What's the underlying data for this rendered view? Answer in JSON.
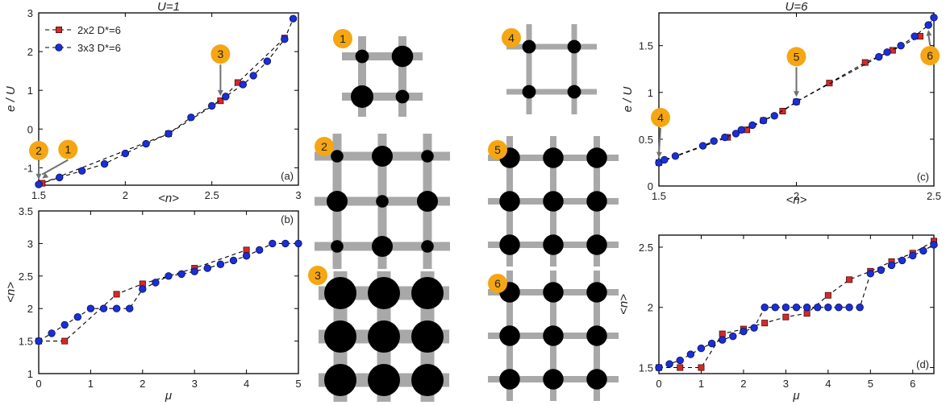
{
  "chart_data": [
    {
      "panel": "(a)",
      "type": "line",
      "title": "U=1",
      "xlabel": "<n>",
      "ylabel": "e / U",
      "xlim": [
        1.5,
        3
      ],
      "ylim": [
        -1.45,
        3
      ],
      "xticks": [
        "1.5",
        "2",
        "2.5",
        "3"
      ],
      "yticks": [
        "-1",
        "0",
        "1",
        "2",
        "3"
      ],
      "legend": {
        "placement": "top-left",
        "entries": [
          "2x2 D*=6",
          "3x3 D*=6"
        ]
      },
      "series": [
        {
          "name": "2x2 D*=6",
          "marker": "square",
          "color": "#d42a2a",
          "x": [
            1.52,
            2.25,
            2.55,
            2.65,
            2.92
          ],
          "y": [
            -1.4,
            -0.12,
            0.73,
            1.2,
            2.35
          ]
        },
        {
          "name": "3x3 D*=6",
          "marker": "circle",
          "color": "#1a2fd6",
          "x": [
            1.5,
            1.62,
            1.75,
            1.88,
            2.0,
            2.12,
            2.25,
            2.38,
            2.5,
            2.58,
            2.68,
            2.74,
            2.82,
            2.92,
            2.97
          ],
          "y": [
            -1.43,
            -1.25,
            -1.08,
            -0.9,
            -0.63,
            -0.38,
            -0.12,
            0.3,
            0.6,
            0.84,
            1.15,
            1.38,
            1.75,
            2.32,
            2.85
          ]
        }
      ],
      "annotations": [
        {
          "label": "1",
          "x": 1.52,
          "y": -1.4
        },
        {
          "label": "2",
          "x": 1.5,
          "y": -1.43
        },
        {
          "label": "3",
          "x": 2.55,
          "y": 0.73
        }
      ]
    },
    {
      "panel": "(b)",
      "type": "line",
      "xlabel": "μ",
      "ylabel": "<n>",
      "xlim": [
        0,
        5
      ],
      "ylim": [
        1,
        3.5
      ],
      "xticks": [
        "0",
        "1",
        "2",
        "3",
        "4",
        "5"
      ],
      "yticks": [
        "1",
        "1.5",
        "2",
        "2.5",
        "3",
        "3.5"
      ],
      "series": [
        {
          "name": "2x2 D*=6",
          "marker": "square",
          "color": "#d42a2a",
          "x": [
            0,
            0.5,
            1.5,
            2.0,
            3.0,
            4.0
          ],
          "y": [
            1.5,
            1.5,
            2.22,
            2.38,
            2.62,
            2.9
          ]
        },
        {
          "name": "3x3 D*=6",
          "marker": "circle",
          "color": "#1a2fd6",
          "x": [
            0,
            0.25,
            0.5,
            0.75,
            1.0,
            1.25,
            1.5,
            1.75,
            2.0,
            2.25,
            2.5,
            2.75,
            3.0,
            3.25,
            3.5,
            3.75,
            4.0,
            4.25,
            4.5,
            4.75,
            5.0
          ],
          "y": [
            1.5,
            1.62,
            1.75,
            1.87,
            2.0,
            2.0,
            2.0,
            2.0,
            2.3,
            2.4,
            2.5,
            2.53,
            2.57,
            2.62,
            2.68,
            2.74,
            2.81,
            2.9,
            3.0,
            3.0,
            3.0
          ]
        }
      ]
    },
    {
      "panel": "(c)",
      "type": "line",
      "title": "U=6",
      "xlabel": "<n>",
      "ylabel": "e / U",
      "xlim": [
        1.5,
        2.5
      ],
      "ylim": [
        0,
        1.85
      ],
      "xticks": [
        "1.5",
        "2",
        "2.5"
      ],
      "yticks": [
        "0",
        "0.5",
        "1",
        "1.5"
      ],
      "series": [
        {
          "name": "2x2 D*=6",
          "marker": "square",
          "color": "#d42a2a",
          "x": [
            1.5,
            1.75,
            1.82,
            1.88,
            1.95,
            2.0,
            2.12,
            2.25,
            2.35,
            2.45
          ],
          "y": [
            0.25,
            0.52,
            0.6,
            0.7,
            0.8,
            0.9,
            1.1,
            1.32,
            1.45,
            1.6
          ]
        },
        {
          "name": "3x3 D*=6",
          "marker": "circle",
          "color": "#1a2fd6",
          "x": [
            1.5,
            1.52,
            1.56,
            1.66,
            1.7,
            1.74,
            1.78,
            1.8,
            1.84,
            1.88,
            1.92,
            2.0,
            2.3,
            2.33,
            2.38,
            2.43,
            2.48,
            2.5
          ],
          "y": [
            0.25,
            0.28,
            0.32,
            0.43,
            0.48,
            0.52,
            0.56,
            0.6,
            0.65,
            0.7,
            0.75,
            0.9,
            1.38,
            1.43,
            1.5,
            1.6,
            1.72,
            1.8
          ]
        }
      ],
      "annotations": [
        {
          "label": "4",
          "x": 1.5,
          "y": 0.25
        },
        {
          "label": "5",
          "x": 2.0,
          "y": 0.9
        },
        {
          "label": "6",
          "x": 2.48,
          "y": 1.72
        }
      ]
    },
    {
      "panel": "(d)",
      "type": "line",
      "xlabel": "μ",
      "ylabel": "<n>",
      "xlim": [
        0,
        6.5
      ],
      "ylim": [
        1.45,
        2.6
      ],
      "xticks": [
        "0",
        "1",
        "2",
        "3",
        "4",
        "5",
        "6"
      ],
      "yticks": [
        "1.5",
        "2",
        "2.5"
      ],
      "series": [
        {
          "name": "2x2 D*=6",
          "marker": "square",
          "color": "#d42a2a",
          "x": [
            0,
            0.5,
            1.0,
            1.5,
            2.0,
            2.5,
            3.0,
            3.5,
            4.0,
            4.5,
            5.0,
            5.5,
            6.0,
            6.5
          ],
          "y": [
            1.5,
            1.5,
            1.5,
            1.78,
            1.82,
            1.87,
            1.92,
            1.95,
            2.1,
            2.23,
            2.3,
            2.38,
            2.45,
            2.55
          ]
        },
        {
          "name": "3x3 D*=6",
          "marker": "circle",
          "color": "#1a2fd6",
          "x": [
            0,
            0.25,
            0.5,
            0.75,
            1.0,
            1.25,
            1.5,
            1.75,
            2.0,
            2.25,
            2.5,
            2.75,
            3.0,
            3.25,
            3.5,
            3.75,
            4.0,
            4.25,
            4.5,
            4.75,
            5.0,
            5.25,
            5.5,
            5.75,
            6.0,
            6.25,
            6.5
          ],
          "y": [
            1.5,
            1.53,
            1.56,
            1.61,
            1.66,
            1.7,
            1.73,
            1.76,
            1.8,
            1.83,
            2.0,
            2.0,
            2.0,
            2.0,
            2.0,
            2.0,
            2.0,
            2.0,
            2.0,
            2.0,
            2.28,
            2.31,
            2.35,
            2.39,
            2.43,
            2.47,
            2.52
          ]
        }
      ]
    }
  ],
  "lattices": [
    {
      "label": "1",
      "size": 2,
      "radii": [
        [
          0.6,
          0.95
        ],
        [
          1.0,
          0.6
        ]
      ]
    },
    {
      "label": "2",
      "size": 3,
      "radii": [
        [
          0.6,
          1.0,
          0.6
        ],
        [
          1.0,
          0.6,
          1.0
        ],
        [
          0.6,
          1.0,
          0.6
        ]
      ]
    },
    {
      "label": "3",
      "size": 3,
      "radii": [
        [
          1.0,
          1.0,
          1.0
        ],
        [
          1.0,
          1.0,
          1.0
        ],
        [
          1.0,
          1.0,
          1.0
        ]
      ]
    },
    {
      "label": "4",
      "size": 2,
      "radii": [
        [
          0.7,
          0.7
        ],
        [
          0.7,
          0.7
        ]
      ]
    },
    {
      "label": "5",
      "size": 3,
      "radii": [
        [
          0.85,
          0.85,
          0.85
        ],
        [
          0.85,
          0.85,
          0.85
        ],
        [
          0.85,
          0.85,
          0.85
        ]
      ]
    },
    {
      "label": "6",
      "size": 3,
      "radii": [
        [
          0.85,
          0.85,
          0.85
        ],
        [
          0.85,
          0.85,
          0.85
        ],
        [
          0.85,
          0.85,
          0.85
        ]
      ]
    }
  ],
  "colors": {
    "badge": "#f5a612",
    "bond": "#a8a8a8",
    "site": "#000000",
    "arrow": "#707070"
  }
}
